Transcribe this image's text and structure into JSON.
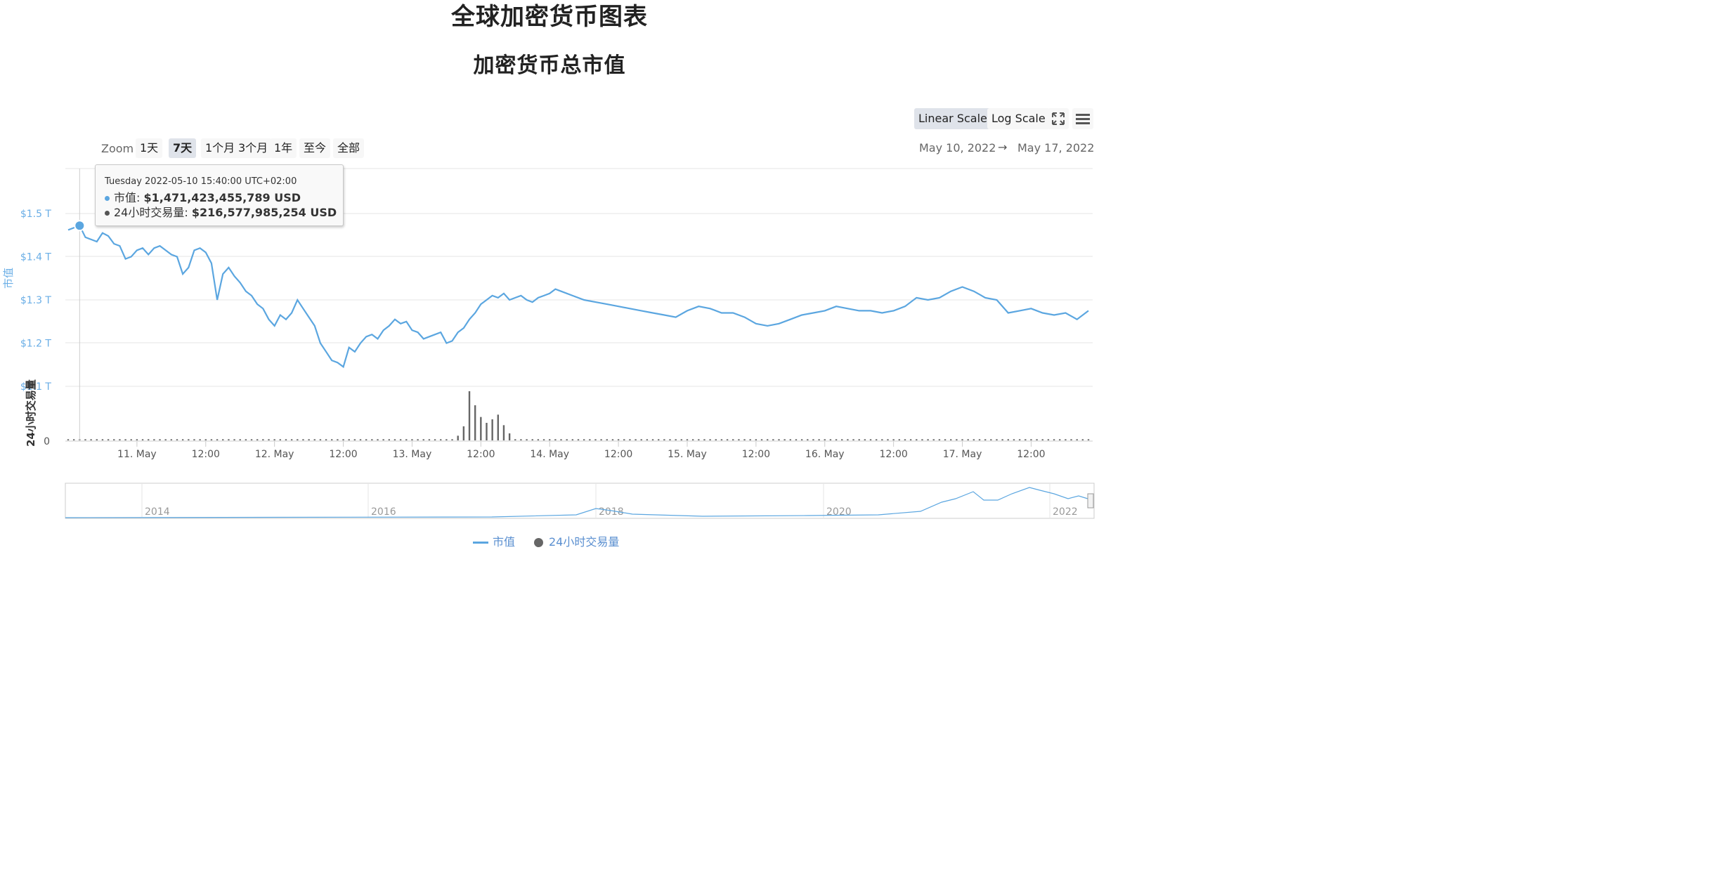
{
  "page": {
    "title": "全球加密货币图表"
  },
  "toolbar": {
    "linear_scale": "Linear Scale",
    "log_scale": "Log Scale",
    "fullscreen_icon": "fullscreen-icon",
    "menu_icon": "hamburger-menu-icon"
  },
  "zoom": {
    "label": "Zoom",
    "buttons": [
      "1天",
      "7天",
      "1个月",
      "3个月",
      "1年",
      "至今",
      "全部"
    ],
    "active": "7天"
  },
  "range": {
    "from": "May 10, 2022",
    "arrow": "→",
    "to": "May 17, 2022"
  },
  "tooltip": {
    "date": "Tuesday 2022-05-10 15:40:00 UTC+02:00",
    "mc_label": "市值: ",
    "mc_value": "$1,471,423,455,789 USD",
    "vol_label": "24小时交易量: ",
    "vol_value": "$216,577,985,254 USD"
  },
  "legend": {
    "market_cap": "市值",
    "volume": "24小时交易量"
  },
  "colors": {
    "market_cap": "#5ba6e0",
    "volume": "#666666",
    "grid": "#e6e6e6",
    "axis_label_blue": "#6aaee6"
  },
  "chart_data": {
    "type": "line",
    "title": "加密货币总市值",
    "x_ticks": [
      "11. May",
      "12:00",
      "12. May",
      "12:00",
      "13. May",
      "12:00",
      "14. May",
      "12:00",
      "15. May",
      "12:00",
      "16. May",
      "12:00",
      "17. May",
      "12:00"
    ],
    "y_axis": {
      "label": "市值",
      "ticks": [
        "$1.1 T",
        "$1.2 T",
        "$1.3 T",
        "$1.4 T",
        "$1.5 T"
      ],
      "range_trillion_usd": [
        1.1,
        1.55
      ]
    },
    "volume_axis": {
      "label": "24小时交易量",
      "ticks": [
        "0"
      ]
    },
    "series": [
      {
        "name": "市值",
        "unit": "trillion USD",
        "x_hours_since_start": [
          0,
          2,
          3,
          4,
          5,
          6,
          7,
          8,
          9,
          10,
          11,
          12,
          13,
          14,
          15,
          16,
          17,
          18,
          19,
          20,
          21,
          22,
          23,
          24,
          25,
          26,
          27,
          28,
          29,
          30,
          31,
          32,
          33,
          34,
          35,
          36,
          37,
          38,
          39,
          40,
          41,
          42,
          43,
          44,
          45,
          46,
          47,
          48,
          49,
          50,
          51,
          52,
          53,
          54,
          55,
          56,
          57,
          58,
          59,
          60,
          61,
          62,
          63,
          64,
          65,
          66,
          67,
          68,
          69,
          70,
          71,
          72,
          73,
          74,
          75,
          76,
          77,
          78,
          79,
          80,
          81,
          82,
          83,
          84,
          85,
          86,
          88,
          90,
          92,
          94,
          96,
          98,
          100,
          102,
          104,
          106,
          108,
          110,
          112,
          114,
          116,
          118,
          120,
          122,
          124,
          126,
          128,
          130,
          132,
          134,
          136,
          138,
          140,
          142,
          144,
          146,
          148,
          150,
          152,
          154,
          156,
          158,
          160,
          162,
          164,
          166,
          168,
          170,
          172,
          174,
          176,
          178
        ],
        "values": [
          1.462,
          1.472,
          1.445,
          1.44,
          1.435,
          1.455,
          1.448,
          1.43,
          1.425,
          1.395,
          1.4,
          1.415,
          1.42,
          1.405,
          1.42,
          1.425,
          1.415,
          1.405,
          1.4,
          1.36,
          1.375,
          1.415,
          1.42,
          1.41,
          1.385,
          1.3,
          1.36,
          1.375,
          1.355,
          1.34,
          1.32,
          1.31,
          1.29,
          1.28,
          1.255,
          1.24,
          1.265,
          1.255,
          1.27,
          1.3,
          1.28,
          1.26,
          1.24,
          1.2,
          1.18,
          1.16,
          1.155,
          1.145,
          1.19,
          1.18,
          1.2,
          1.215,
          1.22,
          1.21,
          1.23,
          1.24,
          1.255,
          1.245,
          1.25,
          1.23,
          1.225,
          1.21,
          1.215,
          1.22,
          1.225,
          1.2,
          1.205,
          1.225,
          1.235,
          1.255,
          1.27,
          1.29,
          1.3,
          1.31,
          1.305,
          1.315,
          1.3,
          1.305,
          1.31,
          1.3,
          1.295,
          1.305,
          1.31,
          1.315,
          1.325,
          1.32,
          1.31,
          1.3,
          1.295,
          1.29,
          1.285,
          1.28,
          1.275,
          1.27,
          1.265,
          1.26,
          1.275,
          1.285,
          1.28,
          1.27,
          1.27,
          1.26,
          1.245,
          1.24,
          1.245,
          1.255,
          1.265,
          1.27,
          1.275,
          1.285,
          1.28,
          1.275,
          1.275,
          1.27,
          1.275,
          1.285,
          1.305,
          1.3,
          1.305,
          1.32,
          1.33,
          1.32,
          1.305,
          1.3,
          1.27,
          1.275,
          1.28,
          1.27,
          1.265,
          1.27,
          1.255,
          1.275
        ]
      },
      {
        "name": "24小时交易量",
        "unit": "billion USD",
        "spike_x_hours_since_start": [
          68,
          69,
          70,
          71,
          72,
          73,
          74,
          75,
          76,
          77
        ],
        "spike_values": [
          40,
          120,
          420,
          300,
          200,
          150,
          180,
          220,
          130,
          60
        ],
        "baseline_value": 10
      }
    ],
    "navigator": {
      "x_ticks": [
        "2014",
        "2016",
        "2018",
        "2020",
        "2022"
      ]
    },
    "grid": true,
    "legend_position": "bottom-center"
  }
}
